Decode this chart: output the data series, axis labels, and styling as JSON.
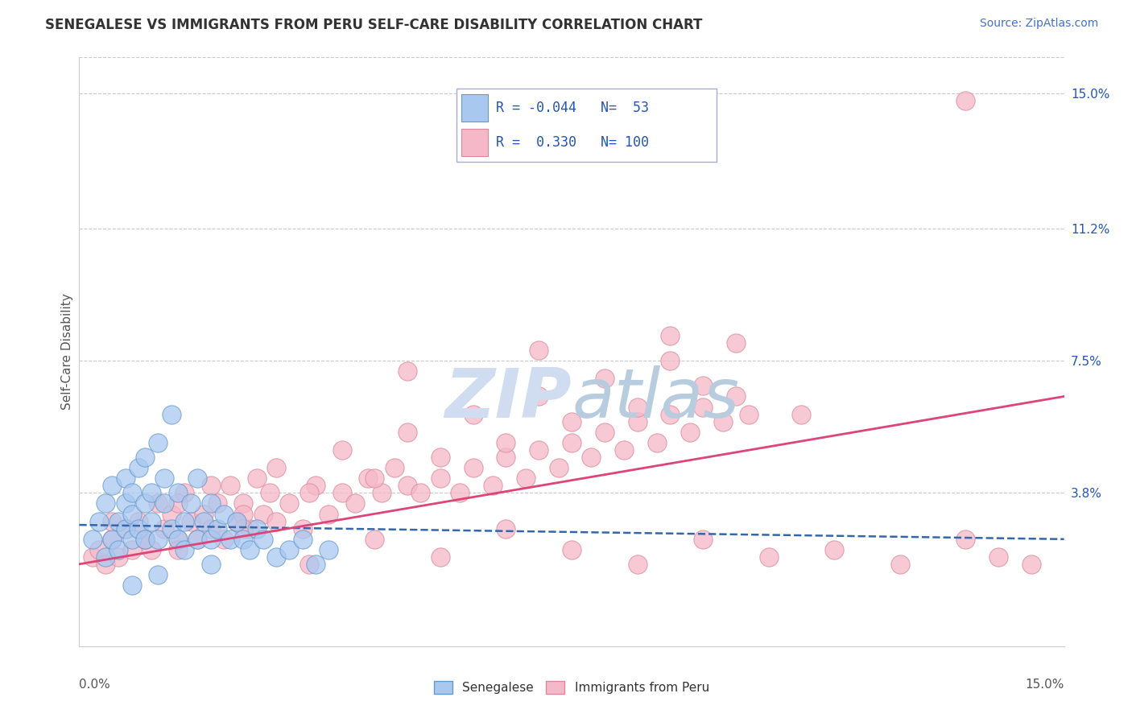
{
  "title": "SENEGALESE VS IMMIGRANTS FROM PERU SELF-CARE DISABILITY CORRELATION CHART",
  "source": "Source: ZipAtlas.com",
  "ylabel": "Self-Care Disability",
  "xlim": [
    0.0,
    0.15
  ],
  "ylim": [
    -0.005,
    0.16
  ],
  "r_senegalese": -0.044,
  "n_senegalese": 53,
  "r_peru": 0.33,
  "n_peru": 100,
  "blue_color": "#A8C8F0",
  "blue_edge": "#6699CC",
  "pink_color": "#F5B8C8",
  "pink_edge": "#DD8899",
  "blue_line_color": "#3366AA",
  "pink_line_color": "#DD4477",
  "background_color": "#FFFFFF",
  "grid_color": "#BBBBBB",
  "title_fontsize": 12,
  "source_fontsize": 10,
  "legend_text_color": "#2255BB",
  "watermark_color": "#D0DCF0",
  "ytick_vals": [
    0.038,
    0.075,
    0.112,
    0.15
  ],
  "ytick_labels": [
    "3.8%",
    "7.5%",
    "11.2%",
    "15.0%"
  ],
  "senegalese_x": [
    0.002,
    0.003,
    0.004,
    0.004,
    0.005,
    0.005,
    0.006,
    0.006,
    0.007,
    0.007,
    0.007,
    0.008,
    0.008,
    0.008,
    0.009,
    0.009,
    0.01,
    0.01,
    0.01,
    0.011,
    0.011,
    0.012,
    0.012,
    0.013,
    0.013,
    0.014,
    0.014,
    0.015,
    0.015,
    0.016,
    0.016,
    0.017,
    0.018,
    0.018,
    0.019,
    0.02,
    0.02,
    0.021,
    0.022,
    0.023,
    0.024,
    0.025,
    0.026,
    0.027,
    0.028,
    0.03,
    0.032,
    0.034,
    0.036,
    0.038,
    0.012,
    0.02,
    0.008
  ],
  "senegalese_y": [
    0.025,
    0.03,
    0.02,
    0.035,
    0.025,
    0.04,
    0.03,
    0.022,
    0.035,
    0.028,
    0.042,
    0.025,
    0.038,
    0.032,
    0.028,
    0.045,
    0.025,
    0.035,
    0.048,
    0.03,
    0.038,
    0.025,
    0.052,
    0.035,
    0.042,
    0.028,
    0.06,
    0.025,
    0.038,
    0.03,
    0.022,
    0.035,
    0.025,
    0.042,
    0.03,
    0.025,
    0.035,
    0.028,
    0.032,
    0.025,
    0.03,
    0.025,
    0.022,
    0.028,
    0.025,
    0.02,
    0.022,
    0.025,
    0.018,
    0.022,
    0.015,
    0.018,
    0.012
  ],
  "peru_x": [
    0.002,
    0.003,
    0.004,
    0.005,
    0.006,
    0.007,
    0.008,
    0.009,
    0.01,
    0.011,
    0.012,
    0.013,
    0.014,
    0.015,
    0.016,
    0.017,
    0.018,
    0.019,
    0.02,
    0.021,
    0.022,
    0.023,
    0.024,
    0.025,
    0.026,
    0.027,
    0.028,
    0.029,
    0.03,
    0.032,
    0.034,
    0.036,
    0.038,
    0.04,
    0.042,
    0.044,
    0.046,
    0.048,
    0.05,
    0.052,
    0.055,
    0.058,
    0.06,
    0.063,
    0.065,
    0.068,
    0.07,
    0.073,
    0.075,
    0.078,
    0.08,
    0.083,
    0.085,
    0.088,
    0.09,
    0.093,
    0.095,
    0.098,
    0.1,
    0.102,
    0.005,
    0.01,
    0.015,
    0.02,
    0.025,
    0.03,
    0.035,
    0.04,
    0.045,
    0.05,
    0.055,
    0.06,
    0.065,
    0.07,
    0.075,
    0.08,
    0.085,
    0.09,
    0.095,
    0.1,
    0.015,
    0.025,
    0.035,
    0.045,
    0.055,
    0.065,
    0.075,
    0.085,
    0.095,
    0.105,
    0.115,
    0.125,
    0.135,
    0.14,
    0.145,
    0.05,
    0.07,
    0.09,
    0.11,
    0.135
  ],
  "peru_y": [
    0.02,
    0.022,
    0.018,
    0.025,
    0.02,
    0.028,
    0.022,
    0.03,
    0.025,
    0.022,
    0.035,
    0.028,
    0.032,
    0.025,
    0.038,
    0.03,
    0.025,
    0.032,
    0.028,
    0.035,
    0.025,
    0.04,
    0.03,
    0.035,
    0.028,
    0.042,
    0.032,
    0.038,
    0.03,
    0.035,
    0.028,
    0.04,
    0.032,
    0.038,
    0.035,
    0.042,
    0.038,
    0.045,
    0.04,
    0.038,
    0.042,
    0.038,
    0.045,
    0.04,
    0.048,
    0.042,
    0.05,
    0.045,
    0.052,
    0.048,
    0.055,
    0.05,
    0.058,
    0.052,
    0.06,
    0.055,
    0.062,
    0.058,
    0.065,
    0.06,
    0.03,
    0.025,
    0.035,
    0.04,
    0.032,
    0.045,
    0.038,
    0.05,
    0.042,
    0.055,
    0.048,
    0.06,
    0.052,
    0.065,
    0.058,
    0.07,
    0.062,
    0.075,
    0.068,
    0.08,
    0.022,
    0.028,
    0.018,
    0.025,
    0.02,
    0.028,
    0.022,
    0.018,
    0.025,
    0.02,
    0.022,
    0.018,
    0.025,
    0.02,
    0.018,
    0.072,
    0.078,
    0.082,
    0.06,
    0.148
  ]
}
